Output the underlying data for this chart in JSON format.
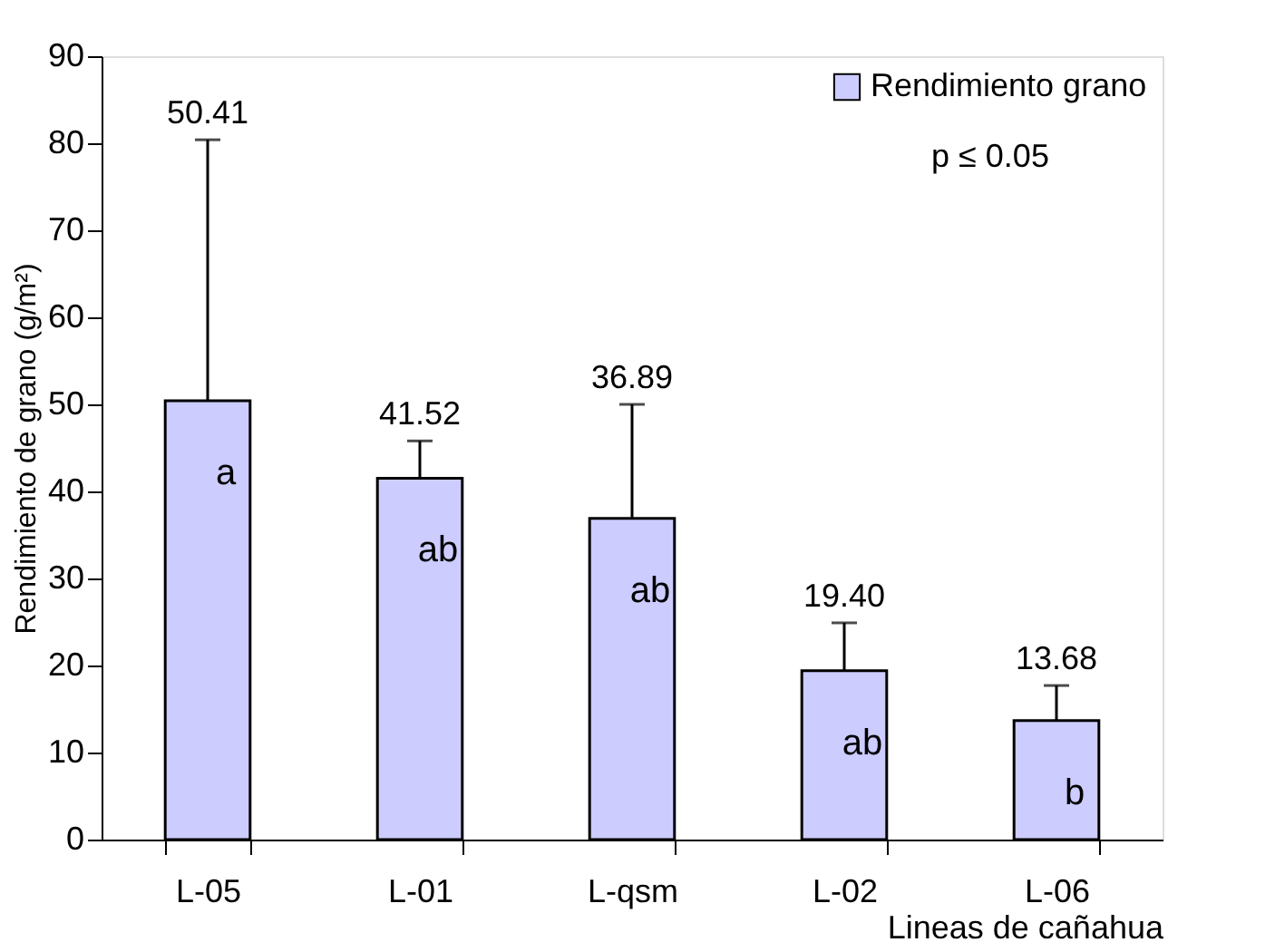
{
  "chart_data": {
    "type": "bar",
    "xlabel": "Lineas de cañahua",
    "ylabel": "Rendimiento de grano (g/m²)",
    "categories": [
      "L-05",
      "L-01",
      "L-qsm",
      "L-02",
      "L-06"
    ],
    "series": [
      {
        "name": "Rendimiento grano",
        "color": "#ccccff",
        "values": [
          50.41,
          41.52,
          36.89,
          19.4,
          13.68
        ],
        "errors": [
          [
            50.41,
            80.4
          ],
          [
            41.52,
            45.8
          ],
          [
            36.89,
            50.0
          ],
          [
            19.4,
            24.9
          ],
          [
            13.68,
            17.7
          ]
        ]
      }
    ],
    "value_labels": [
      "50.41",
      "41.52",
      "36.89",
      "19.40",
      "13.68"
    ],
    "ylim": [
      0,
      90
    ],
    "yticks": [
      0,
      10,
      20,
      30,
      40,
      50,
      60,
      70,
      80,
      90
    ],
    "grid": false,
    "legend": "top right",
    "annotations": [
      "p ≤ 0.05",
      "a",
      "ab",
      "ab",
      "ab",
      "b"
    ]
  }
}
